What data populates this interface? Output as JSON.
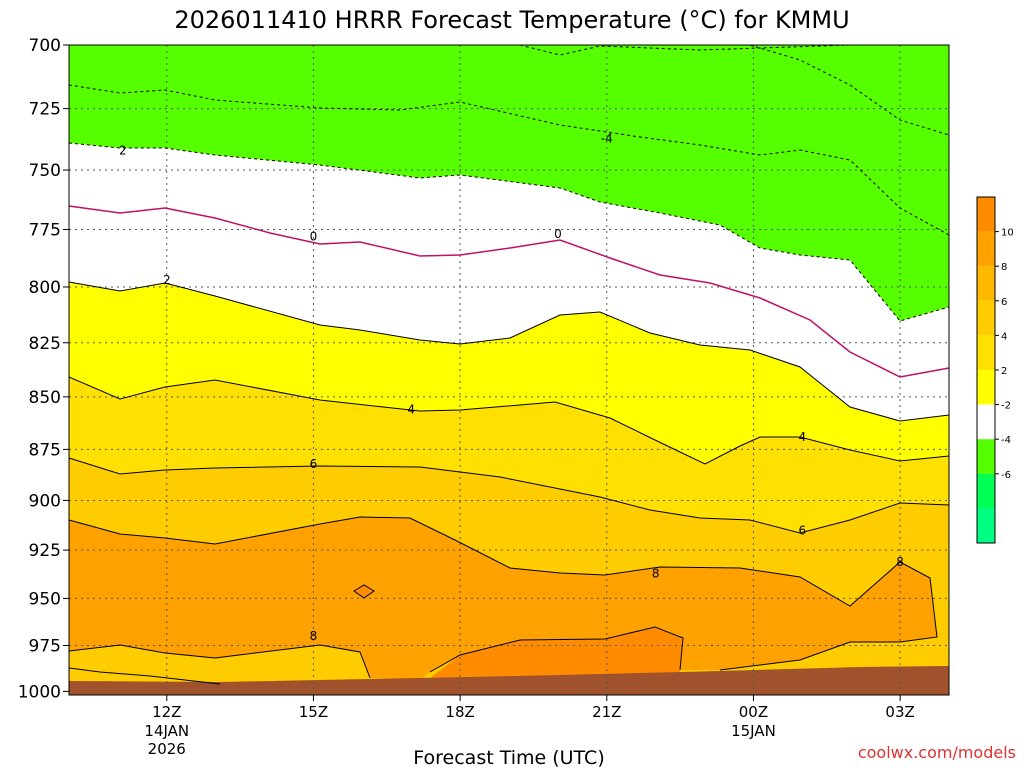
{
  "chart_data": {
    "type": "heatmap",
    "title": "2026011410 HRRR Forecast Temperature (°C) for KMMU",
    "xlabel": "Forecast Time (UTC)",
    "ylabel": "",
    "x_ticks": [
      {
        "label": "12Z",
        "date": "14JAN",
        "year": "2026",
        "hour": 12
      },
      {
        "label": "15Z",
        "hour": 15
      },
      {
        "label": "18Z",
        "hour": 18
      },
      {
        "label": "21Z",
        "hour": 21
      },
      {
        "label": "00Z",
        "date": "15JAN",
        "hour": 24
      },
      {
        "label": "03Z",
        "hour": 27
      }
    ],
    "xlim": [
      10,
      28
    ],
    "y_ticks": [
      700,
      725,
      750,
      775,
      800,
      825,
      850,
      875,
      900,
      925,
      950,
      975,
      1000
    ],
    "ylim": [
      700,
      1002
    ],
    "y_scale": "log-pressure",
    "grid": "dotted",
    "contour_labels": [
      {
        "text": "2",
        "hour": 11.1,
        "p": 742
      },
      {
        "text": "-4",
        "hour": 21.0,
        "p": 737
      },
      {
        "text": "0",
        "hour": 15.0,
        "p": 778
      },
      {
        "text": "0",
        "hour": 20.0,
        "p": 777
      },
      {
        "text": "2",
        "hour": 12.0,
        "p": 797
      },
      {
        "text": "4",
        "hour": 17.0,
        "p": 856
      },
      {
        "text": "4",
        "hour": 25.0,
        "p": 869
      },
      {
        "text": "6",
        "hour": 15.0,
        "p": 882
      },
      {
        "text": "6",
        "hour": 25.0,
        "p": 915
      },
      {
        "text": "8",
        "hour": 22.0,
        "p": 937
      },
      {
        "text": "8",
        "hour": 27.0,
        "p": 931
      },
      {
        "text": "8",
        "hour": 15.0,
        "p": 970
      }
    ],
    "colorbar": {
      "ticks": [
        "10",
        "8",
        "6",
        "4",
        "2",
        "-2",
        "-4",
        "-6"
      ],
      "colors": [
        "#ff8c00",
        "#ffa200",
        "#ffb800",
        "#ffcc00",
        "#ffe000",
        "#ffff00",
        "#ffffff",
        "#55ff00",
        "#00ff55",
        "#00ff80"
      ]
    },
    "credit": "coolwx.com/models"
  }
}
